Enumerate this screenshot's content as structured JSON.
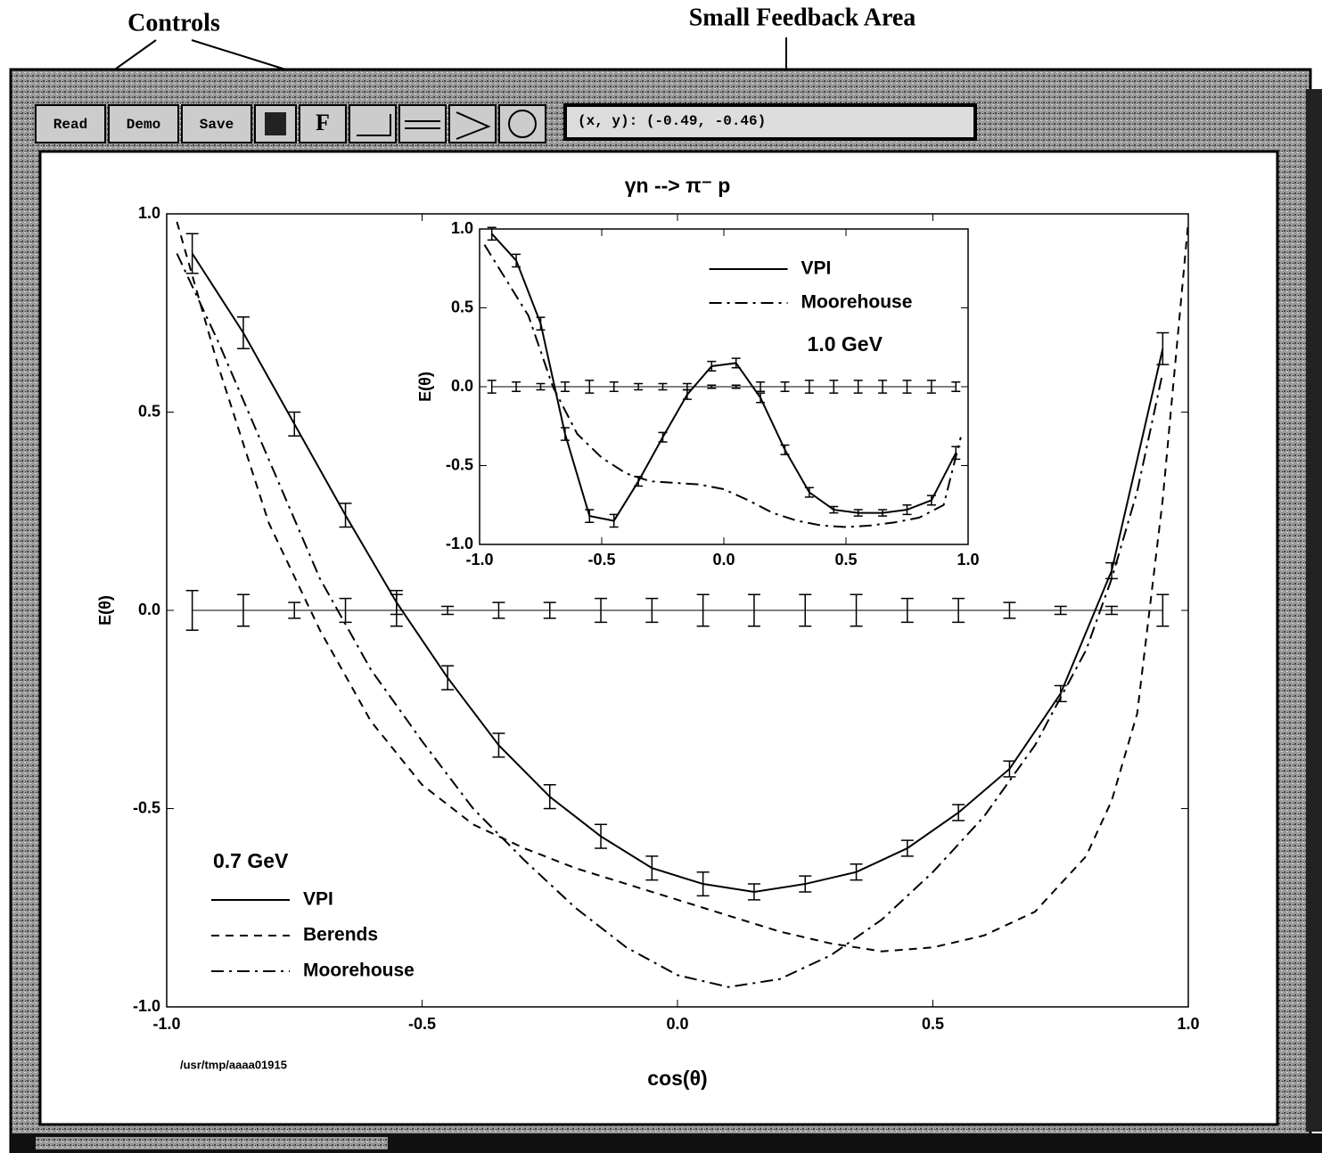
{
  "annotations": {
    "controls": "Controls",
    "feedback_area": "Small Feedback Area"
  },
  "toolbar": {
    "buttons": [
      "Read",
      "Demo",
      "Save",
      "F"
    ],
    "feedback": "(x, y): (-0.49, -0.46)"
  },
  "chart_data": [
    {
      "type": "line",
      "title": "γn -->  π⁻ p",
      "xlabel": "cos(θ)",
      "ylabel": "E(θ)",
      "annotation": "0.7 GeV",
      "footnote": "/usr/tmp/aaaa01915",
      "xlim": [
        -1,
        1
      ],
      "ylim": [
        -1,
        1
      ],
      "xticks": [
        {
          "value": -1,
          "label": "-1.0"
        },
        -0.5,
        {
          "value": 0,
          "label": "0.0"
        },
        0.5,
        {
          "value": 1,
          "label": "1.0"
        }
      ],
      "yticks": [
        {
          "value": -1,
          "label": "-1.0"
        },
        -0.5,
        {
          "value": 0,
          "label": "0.0"
        },
        0.5,
        {
          "value": 1,
          "label": "1.0"
        }
      ],
      "legend": "lower left",
      "series": [
        {
          "name": "VPI",
          "color": "#000000",
          "style": "solid",
          "x": [
            -0.95,
            -0.85,
            -0.75,
            -0.65,
            -0.55,
            -0.45,
            -0.35,
            -0.25,
            -0.15,
            -0.05,
            0.05,
            0.15,
            0.25,
            0.35,
            0.45,
            0.55,
            0.65,
            0.75,
            0.85,
            0.95
          ],
          "values": [
            0.9,
            0.7,
            0.47,
            0.24,
            0.02,
            -0.17,
            -0.34,
            -0.47,
            -0.57,
            -0.65,
            -0.69,
            -0.71,
            -0.69,
            -0.66,
            -0.6,
            -0.51,
            -0.4,
            -0.21,
            0.1,
            0.66
          ]
        },
        {
          "name": "Berends",
          "color": "#000000",
          "style": "dashed",
          "x": [
            -0.98,
            -0.9,
            -0.8,
            -0.7,
            -0.6,
            -0.5,
            -0.4,
            -0.3,
            -0.2,
            -0.1,
            0,
            0.1,
            0.2,
            0.3,
            0.4,
            0.5,
            0.6,
            0.7,
            0.8,
            0.85,
            0.9,
            0.95,
            1.0
          ],
          "values": [
            0.98,
            0.62,
            0.22,
            -0.05,
            -0.28,
            -0.44,
            -0.54,
            -0.6,
            -0.65,
            -0.69,
            -0.73,
            -0.77,
            -0.81,
            -0.84,
            -0.86,
            -0.85,
            -0.82,
            -0.76,
            -0.62,
            -0.48,
            -0.26,
            0.28,
            0.98
          ]
        },
        {
          "name": "Moorehouse",
          "color": "#000000",
          "style": "dashdot",
          "x": [
            -0.98,
            -0.9,
            -0.8,
            -0.7,
            -0.6,
            -0.5,
            -0.4,
            -0.3,
            -0.2,
            -0.1,
            0,
            0.1,
            0.2,
            0.3,
            0.4,
            0.5,
            0.6,
            0.7,
            0.8,
            0.85,
            0.9,
            0.95
          ],
          "values": [
            0.9,
            0.68,
            0.38,
            0.08,
            -0.15,
            -0.33,
            -0.5,
            -0.63,
            -0.75,
            -0.85,
            -0.92,
            -0.95,
            -0.93,
            -0.87,
            -0.78,
            -0.66,
            -0.52,
            -0.34,
            -0.1,
            0.08,
            0.3,
            0.6
          ]
        }
      ],
      "points": [
        {
          "x": [
            -0.95,
            -0.85,
            -0.75,
            -0.65,
            -0.55,
            -0.45,
            -0.35,
            -0.25,
            -0.15,
            -0.05,
            0.05,
            0.15,
            0.25,
            0.35,
            0.45,
            0.55,
            0.65,
            0.75,
            0.85,
            0.95
          ],
          "values": [
            0.9,
            0.7,
            0.47,
            0.24,
            0.02,
            -0.17,
            -0.34,
            -0.47,
            -0.57,
            -0.65,
            -0.69,
            -0.71,
            -0.69,
            -0.66,
            -0.6,
            -0.51,
            -0.4,
            -0.21,
            0.1,
            0.66
          ],
          "errors": [
            0.05,
            0.04,
            0.03,
            0.03,
            0.03,
            0.03,
            0.03,
            0.03,
            0.03,
            0.03,
            0.03,
            0.02,
            0.02,
            0.02,
            0.02,
            0.02,
            0.02,
            0.02,
            0.02,
            0.04
          ]
        },
        {
          "x": [
            -0.95,
            -0.85,
            -0.75,
            -0.65,
            -0.55,
            -0.45,
            -0.35,
            -0.25,
            -0.15,
            -0.05,
            0.05,
            0.15,
            0.25,
            0.35,
            0.45,
            0.55,
            0.65,
            0.75,
            0.85,
            0.95
          ],
          "values": [
            0,
            0,
            0,
            0,
            0,
            0,
            0,
            0,
            0,
            0,
            0,
            0,
            0,
            0,
            0,
            0,
            0,
            0,
            0,
            0
          ],
          "errors": [
            0.05,
            0.04,
            0.02,
            0.03,
            0.04,
            0.01,
            0.02,
            0.02,
            0.03,
            0.03,
            0.04,
            0.04,
            0.04,
            0.04,
            0.03,
            0.03,
            0.02,
            0.01,
            0.01,
            0.04
          ]
        }
      ]
    },
    {
      "type": "line",
      "ylabel": "E(θ)",
      "annotation": "1.0 GeV",
      "xlim": [
        -1,
        1
      ],
      "ylim": [
        -1,
        1
      ],
      "xticks": [
        {
          "value": -1,
          "label": "-1.0"
        },
        -0.5,
        {
          "value": 0,
          "label": "0.0"
        },
        0.5,
        {
          "value": 1,
          "label": "1.0"
        }
      ],
      "yticks": [
        {
          "value": -1,
          "label": "-1.0"
        },
        -0.5,
        {
          "value": 0,
          "label": "0.0"
        },
        0.5,
        {
          "value": 1,
          "label": "1.0"
        }
      ],
      "legend": "upper center",
      "series": [
        {
          "name": "VPI",
          "color": "#000000",
          "style": "solid",
          "x": [
            -0.95,
            -0.85,
            -0.75,
            -0.65,
            -0.55,
            -0.45,
            -0.35,
            -0.25,
            -0.15,
            -0.05,
            0.05,
            0.15,
            0.25,
            0.35,
            0.45,
            0.55,
            0.65,
            0.75,
            0.85,
            0.95
          ],
          "values": [
            0.97,
            0.8,
            0.4,
            -0.3,
            -0.82,
            -0.85,
            -0.6,
            -0.32,
            -0.05,
            0.13,
            0.15,
            -0.07,
            -0.4,
            -0.67,
            -0.78,
            -0.8,
            -0.8,
            -0.78,
            -0.72,
            -0.42
          ]
        },
        {
          "name": "Moorehouse",
          "color": "#000000",
          "style": "dashdot",
          "x": [
            -0.98,
            -0.9,
            -0.8,
            -0.7,
            -0.6,
            -0.5,
            -0.4,
            -0.3,
            -0.2,
            -0.1,
            0,
            0.1,
            0.2,
            0.3,
            0.4,
            0.5,
            0.6,
            0.7,
            0.8,
            0.9,
            0.97
          ],
          "values": [
            0.9,
            0.7,
            0.45,
            0.0,
            -0.3,
            -0.45,
            -0.55,
            -0.6,
            -0.61,
            -0.62,
            -0.65,
            -0.72,
            -0.8,
            -0.85,
            -0.88,
            -0.89,
            -0.88,
            -0.86,
            -0.83,
            -0.75,
            -0.32
          ]
        }
      ],
      "points": [
        {
          "x": [
            -0.95,
            -0.85,
            -0.75,
            -0.65,
            -0.55,
            -0.45,
            -0.35,
            -0.25,
            -0.15,
            -0.05,
            0.05,
            0.15,
            0.25,
            0.35,
            0.45,
            0.55,
            0.65,
            0.75,
            0.85,
            0.95
          ],
          "values": [
            0.97,
            0.8,
            0.4,
            -0.3,
            -0.82,
            -0.85,
            -0.6,
            -0.32,
            -0.05,
            0.13,
            0.15,
            -0.07,
            -0.4,
            -0.67,
            -0.78,
            -0.8,
            -0.8,
            -0.78,
            -0.72,
            -0.42
          ],
          "errors": [
            0.04,
            0.04,
            0.04,
            0.04,
            0.04,
            0.04,
            0.03,
            0.03,
            0.03,
            0.03,
            0.03,
            0.03,
            0.03,
            0.03,
            0.02,
            0.02,
            0.02,
            0.03,
            0.03,
            0.04
          ]
        },
        {
          "x": [
            -0.95,
            -0.85,
            -0.75,
            -0.65,
            -0.55,
            -0.45,
            -0.35,
            -0.25,
            -0.15,
            -0.05,
            0.05,
            0.15,
            0.25,
            0.35,
            0.45,
            0.55,
            0.65,
            0.75,
            0.85,
            0.95
          ],
          "values": [
            0,
            0,
            0,
            0,
            0,
            0,
            0,
            0,
            0,
            0,
            0,
            0,
            0,
            0,
            0,
            0,
            0,
            0,
            0,
            0
          ],
          "errors": [
            0.04,
            0.03,
            0.02,
            0.03,
            0.04,
            0.03,
            0.02,
            0.02,
            0.02,
            0.01,
            0.01,
            0.03,
            0.03,
            0.04,
            0.04,
            0.04,
            0.04,
            0.04,
            0.04,
            0.03
          ]
        }
      ]
    }
  ]
}
